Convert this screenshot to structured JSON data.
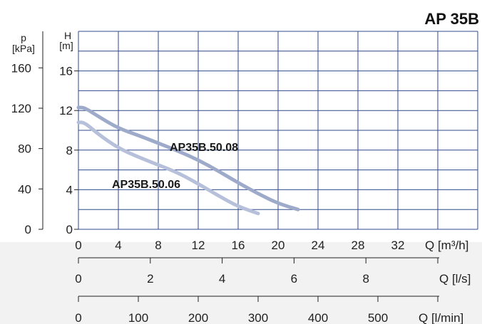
{
  "chart_data": {
    "type": "line",
    "title": "AP 35B",
    "xlabel": "Q [m³/h]",
    "ylabel": "H [m]",
    "xlim": [
      0,
      40
    ],
    "ylim": [
      0,
      20
    ],
    "x_ticks": [
      "0",
      "4",
      "8",
      "12",
      "16",
      "20",
      "24",
      "28",
      "32"
    ],
    "y_ticks": [
      "0",
      "4",
      "8",
      "12",
      "16"
    ],
    "grid": true,
    "series": [
      {
        "name": "AP35B.50.08",
        "x": [
          0,
          0.6,
          2,
          4,
          6,
          8,
          10,
          12,
          14,
          16,
          18,
          20,
          22
        ],
        "y": [
          12.3,
          12.3,
          11.4,
          10.2,
          9.5,
          8.7,
          7.9,
          7.0,
          5.9,
          4.7,
          3.6,
          2.6,
          2.0
        ]
      },
      {
        "name": "AP35B.50.06",
        "x": [
          0,
          0.6,
          2,
          4,
          6,
          8,
          10,
          12,
          14,
          16,
          18
        ],
        "y": [
          10.8,
          10.8,
          9.6,
          8.2,
          7.3,
          6.5,
          5.7,
          4.6,
          3.4,
          2.3,
          1.6
        ]
      }
    ],
    "secondary_axes": {
      "pressure": {
        "label_top": "p",
        "label_unit": "[kPa]",
        "ticks": [
          "0",
          "40",
          "80",
          "120",
          "160"
        ],
        "values": [
          0,
          40,
          80,
          120,
          160
        ]
      },
      "flow_ls": {
        "label": "Q [l/s]",
        "ticks": [
          "0",
          "2",
          "4",
          "6",
          "8"
        ],
        "values": [
          0,
          2,
          4,
          6,
          8
        ]
      },
      "flow_lmin": {
        "label": "Q [l/min]",
        "ticks": [
          "0",
          "100",
          "200",
          "300",
          "400",
          "500"
        ],
        "values": [
          0,
          100,
          200,
          300,
          400,
          500
        ]
      }
    },
    "colors": {
      "grid": "#2f4a8c",
      "series_08": "#9eaaca",
      "series_06": "#b6c0db",
      "bottom_band": "#f2f2f2"
    }
  }
}
